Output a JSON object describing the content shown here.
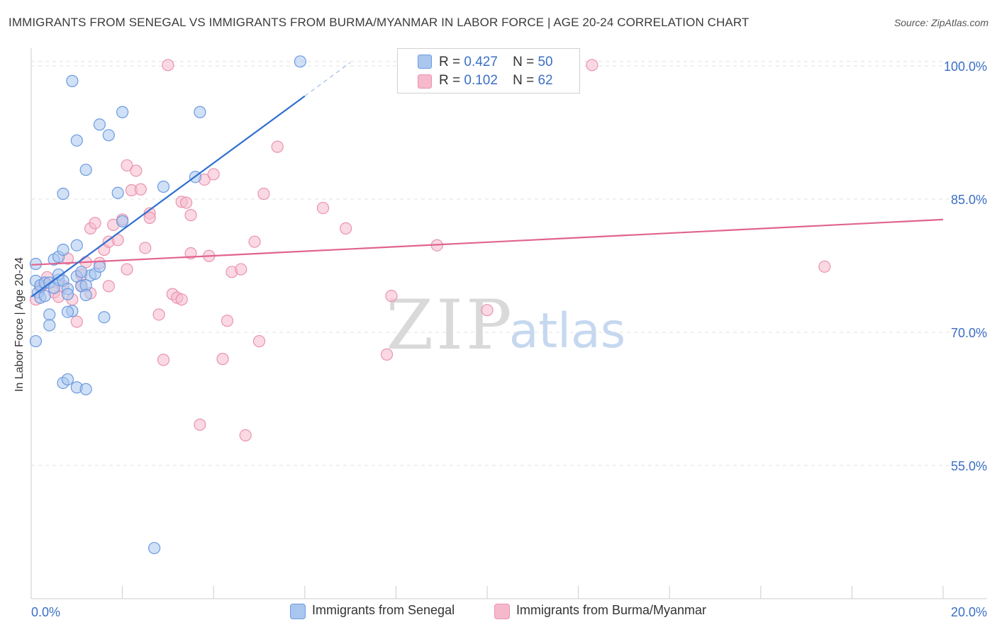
{
  "header": {
    "title": "IMMIGRANTS FROM SENEGAL VS IMMIGRANTS FROM BURMA/MYANMAR IN LABOR FORCE | AGE 20-24 CORRELATION CHART",
    "source": "Source: ZipAtlas.com"
  },
  "legend": {
    "r_label": "R =",
    "n_label": "N =",
    "senegal": {
      "r": "0.427",
      "n": "50"
    },
    "burma": {
      "r": "0.102",
      "n": "62"
    }
  },
  "watermark": {
    "zip": "ZIP",
    "atlas": "atlas"
  },
  "colors": {
    "senegal_fill": "#a9c6ef",
    "senegal_stroke": "#6b9be0",
    "senegal_line": "#2f6fd1",
    "burma_fill": "#f6b9cc",
    "burma_stroke": "#e993b0",
    "burma_line": "#e0648f",
    "tick_label": "#3b6fc6"
  },
  "chart_data": {
    "type": "scatter",
    "title": "IMMIGRANTS FROM SENEGAL VS IMMIGRANTS FROM BURMA/MYANMAR IN LABOR FORCE | AGE 20-24 CORRELATION CHART",
    "xlabel": "",
    "ylabel": "In Labor Force | Age 20-24",
    "xlim": [
      0,
      20
    ],
    "ylim": [
      40,
      102
    ],
    "x_tick_labels": [
      "0.0%",
      "20.0%"
    ],
    "y_ticks": [
      55,
      70,
      85,
      100
    ],
    "y_tick_labels": [
      "55.0%",
      "70.0%",
      "85.0%",
      "100.0%"
    ],
    "legend_position": "top-center",
    "series": [
      {
        "name": "Immigrants from Senegal",
        "r": 0.427,
        "n": 50,
        "trend": {
          "x": [
            0.0,
            6.0
          ],
          "y": [
            74.0,
            96.6
          ]
        },
        "trend_dashed": {
          "x": [
            6.0,
            7.0
          ],
          "y": [
            96.6,
            100.4
          ]
        },
        "points": [
          [
            0.1,
            77.7
          ],
          [
            0.1,
            75.8
          ],
          [
            0.15,
            74.5
          ],
          [
            0.2,
            75.3
          ],
          [
            0.3,
            75.6
          ],
          [
            0.2,
            73.9
          ],
          [
            0.3,
            74.1
          ],
          [
            0.4,
            75.6
          ],
          [
            0.5,
            75.0
          ],
          [
            0.6,
            75.9
          ],
          [
            0.5,
            78.2
          ],
          [
            0.6,
            78.5
          ],
          [
            0.7,
            79.3
          ],
          [
            0.6,
            76.5
          ],
          [
            0.7,
            75.8
          ],
          [
            0.8,
            74.9
          ],
          [
            0.8,
            74.3
          ],
          [
            0.9,
            72.4
          ],
          [
            1.0,
            76.3
          ],
          [
            1.1,
            75.2
          ],
          [
            1.2,
            75.3
          ],
          [
            1.3,
            76.4
          ],
          [
            1.2,
            74.2
          ],
          [
            1.4,
            76.6
          ],
          [
            1.0,
            79.8
          ],
          [
            0.4,
            72.0
          ],
          [
            0.8,
            72.3
          ],
          [
            0.1,
            69.0
          ],
          [
            0.4,
            70.8
          ],
          [
            0.7,
            64.3
          ],
          [
            0.8,
            64.7
          ],
          [
            1.0,
            63.8
          ],
          [
            1.2,
            63.6
          ],
          [
            1.6,
            71.7
          ],
          [
            0.7,
            85.6
          ],
          [
            1.2,
            88.3
          ],
          [
            1.0,
            91.6
          ],
          [
            1.5,
            93.4
          ],
          [
            1.7,
            92.2
          ],
          [
            2.0,
            94.8
          ],
          [
            1.9,
            85.7
          ],
          [
            2.0,
            82.5
          ],
          [
            2.9,
            86.4
          ],
          [
            3.6,
            87.5
          ],
          [
            3.7,
            94.8
          ],
          [
            0.9,
            98.3
          ],
          [
            5.9,
            100.5
          ],
          [
            2.7,
            45.7
          ],
          [
            1.1,
            76.8
          ],
          [
            1.5,
            77.4
          ]
        ]
      },
      {
        "name": "Immigrants from Burma/Myanmar",
        "r": 0.102,
        "n": 62,
        "trend": {
          "x": [
            0.0,
            20.0
          ],
          "y": [
            77.6,
            82.7
          ]
        },
        "points": [
          [
            0.1,
            73.7
          ],
          [
            0.2,
            75.0
          ],
          [
            0.3,
            75.5
          ],
          [
            0.35,
            76.2
          ],
          [
            0.5,
            74.5
          ],
          [
            0.6,
            74.0
          ],
          [
            0.7,
            75.2
          ],
          [
            0.8,
            78.3
          ],
          [
            0.9,
            73.7
          ],
          [
            1.0,
            71.2
          ],
          [
            1.1,
            75.3
          ],
          [
            1.1,
            76.5
          ],
          [
            1.2,
            77.9
          ],
          [
            1.3,
            74.4
          ],
          [
            1.3,
            81.7
          ],
          [
            1.4,
            82.3
          ],
          [
            1.5,
            77.8
          ],
          [
            1.6,
            79.3
          ],
          [
            1.7,
            80.2
          ],
          [
            1.7,
            75.2
          ],
          [
            1.8,
            82.1
          ],
          [
            1.9,
            80.4
          ],
          [
            2.0,
            82.7
          ],
          [
            2.1,
            77.1
          ],
          [
            2.1,
            88.8
          ],
          [
            2.2,
            86.0
          ],
          [
            2.3,
            88.2
          ],
          [
            2.4,
            86.1
          ],
          [
            2.5,
            79.5
          ],
          [
            2.6,
            83.4
          ],
          [
            2.6,
            82.9
          ],
          [
            2.8,
            72.0
          ],
          [
            2.9,
            66.9
          ],
          [
            3.0,
            100.1
          ],
          [
            3.1,
            74.3
          ],
          [
            3.2,
            73.9
          ],
          [
            3.3,
            73.7
          ],
          [
            3.3,
            84.7
          ],
          [
            3.4,
            84.6
          ],
          [
            3.5,
            78.9
          ],
          [
            3.5,
            83.2
          ],
          [
            3.7,
            59.6
          ],
          [
            3.8,
            87.2
          ],
          [
            3.9,
            78.6
          ],
          [
            4.0,
            87.8
          ],
          [
            4.2,
            67.0
          ],
          [
            4.3,
            71.3
          ],
          [
            4.4,
            76.8
          ],
          [
            4.6,
            77.1
          ],
          [
            4.7,
            58.4
          ],
          [
            4.9,
            80.2
          ],
          [
            5.0,
            69.0
          ],
          [
            5.1,
            85.6
          ],
          [
            5.4,
            90.9
          ],
          [
            6.4,
            84.0
          ],
          [
            6.9,
            81.7
          ],
          [
            7.8,
            67.5
          ],
          [
            7.9,
            74.1
          ],
          [
            8.9,
            79.8
          ],
          [
            10.0,
            72.5
          ],
          [
            12.3,
            100.1
          ],
          [
            17.4,
            77.4
          ]
        ]
      }
    ]
  },
  "bottom_legend": {
    "senegal": "Immigrants from Senegal",
    "burma": "Immigrants from Burma/Myanmar"
  }
}
